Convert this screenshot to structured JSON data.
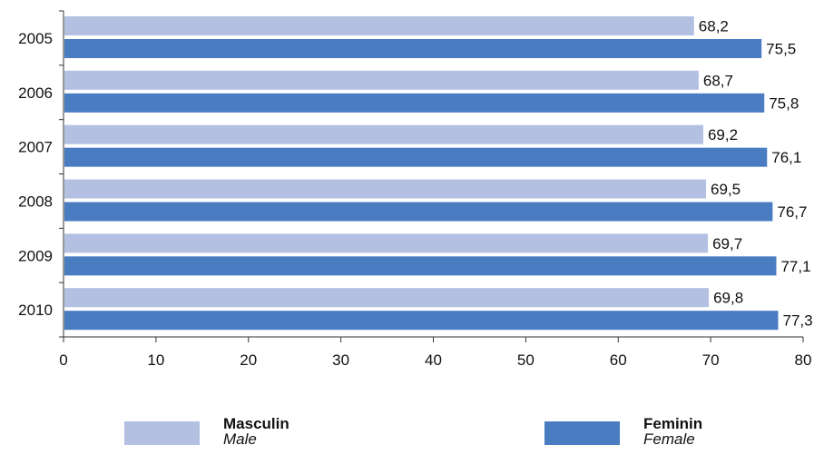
{
  "chart_data": {
    "type": "bar",
    "orientation": "horizontal",
    "categories": [
      "2005",
      "2006",
      "2007",
      "2008",
      "2009",
      "2010"
    ],
    "series": [
      {
        "name": "Masculin",
        "name_en": "Male",
        "color": "#b4c0e2",
        "values": [
          68.2,
          68.7,
          69.2,
          69.5,
          69.7,
          69.8
        ],
        "labels": [
          "68,2",
          "68,7",
          "69,2",
          "69,5",
          "69,7",
          "69,8"
        ]
      },
      {
        "name": "Feminin",
        "name_en": "Female",
        "color": "#4a7cc2",
        "values": [
          75.5,
          75.8,
          76.1,
          76.7,
          77.1,
          77.3
        ],
        "labels": [
          "75,5",
          "75,8",
          "76,1",
          "76,7",
          "77,1",
          "77,3"
        ]
      }
    ],
    "xlim": [
      0,
      80
    ],
    "xticks": [
      0,
      10,
      20,
      30,
      40,
      50,
      60,
      70,
      80
    ],
    "grid": false,
    "legend_position": "bottom"
  },
  "legend": {
    "male": {
      "label": "Masculin",
      "sublabel": "Male"
    },
    "female": {
      "label": "Feminin",
      "sublabel": "Female"
    }
  }
}
